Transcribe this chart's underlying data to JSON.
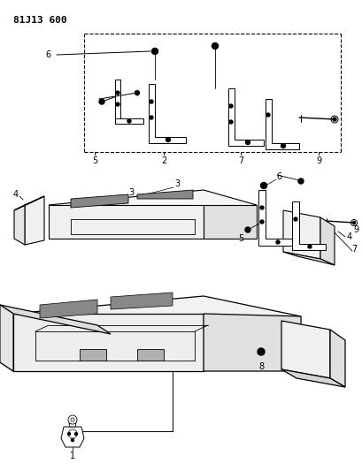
{
  "title": "81J13 600",
  "bg_color": "#ffffff",
  "lc": "#000000",
  "fig_width": 4.09,
  "fig_height": 5.33,
  "dpi": 100
}
